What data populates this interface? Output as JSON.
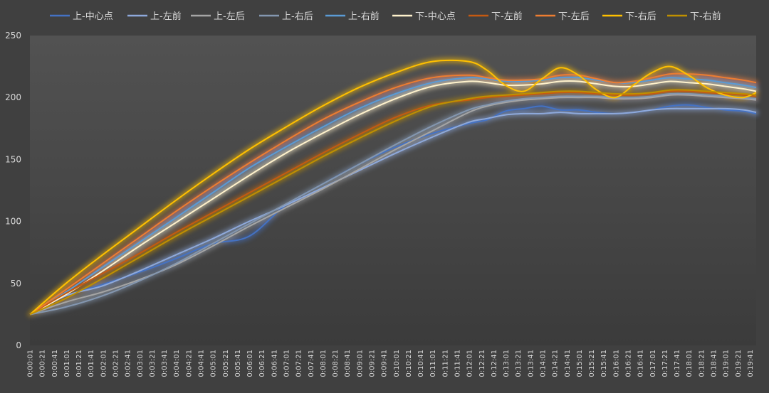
{
  "chart_data": {
    "type": "line",
    "title": "",
    "xlabel": "",
    "ylabel": "",
    "ylim": [
      0,
      250
    ],
    "yticks": [
      0,
      50,
      100,
      150,
      200,
      250
    ],
    "xlim": [
      "0:00:01",
      "0:19:51"
    ],
    "grid": false,
    "legend": "top",
    "x_tick_labels": [
      "0:00:01",
      "0:00:21",
      "0:00:41",
      "0:01:01",
      "0:01:21",
      "0:01:41",
      "0:02:01",
      "0:02:21",
      "0:02:41",
      "0:03:01",
      "0:03:21",
      "0:03:41",
      "0:04:01",
      "0:04:21",
      "0:04:41",
      "0:05:01",
      "0:05:21",
      "0:05:41",
      "0:06:01",
      "0:06:21",
      "0:06:41",
      "0:07:01",
      "0:07:21",
      "0:07:41",
      "0:08:01",
      "0:08:21",
      "0:08:41",
      "0:09:01",
      "0:09:21",
      "0:09:41",
      "0:10:01",
      "0:10:21",
      "0:10:41",
      "0:11:01",
      "0:11:21",
      "0:11:41",
      "0:12:01",
      "0:12:21",
      "0:12:41",
      "0:13:01",
      "0:13:21",
      "0:13:41",
      "0:14:01",
      "0:14:21",
      "0:14:41",
      "0:15:01",
      "0:15:21",
      "0:15:41",
      "0:16:01",
      "0:16:21",
      "0:16:41",
      "0:17:01",
      "0:17:21",
      "0:17:41",
      "0:18:01",
      "0:18:21",
      "0:18:41",
      "0:19:01",
      "0:19:21",
      "0:19:41"
    ],
    "x_minutes": [
      0.02,
      1,
      2,
      3,
      4,
      5,
      6,
      7,
      8,
      9,
      10,
      11,
      12,
      12.5,
      13,
      13.5,
      14,
      14.5,
      15,
      15.5,
      16,
      16.5,
      17,
      17.5,
      18,
      18.5,
      19,
      19.5,
      19.85
    ],
    "series": [
      {
        "name": "上-中心点",
        "color": "#4472C4",
        "values": [
          25,
          40,
          49,
          59,
          70,
          82,
          88,
          113,
          130,
          146,
          160,
          171,
          179,
          182,
          189,
          191,
          193,
          190,
          190,
          188,
          187,
          188,
          190,
          193,
          194,
          192,
          190,
          189,
          187
        ]
      },
      {
        "name": "上-左前",
        "color": "#8EA9DB",
        "values": [
          25,
          40,
          48,
          60,
          73,
          86,
          100,
          113,
          127,
          141,
          155,
          168,
          180,
          183,
          186,
          187,
          187,
          188,
          187,
          187,
          187,
          188,
          190,
          191,
          191,
          191,
          191,
          190,
          188
        ]
      },
      {
        "name": "上-左后",
        "color": "#A5A5A5",
        "values": [
          25,
          35,
          43,
          53,
          65,
          80,
          96,
          111,
          126,
          142,
          158,
          173,
          188,
          193,
          196,
          198,
          199,
          200,
          200,
          200,
          199,
          199,
          200,
          202,
          202,
          201,
          200,
          199,
          198
        ]
      },
      {
        "name": "上-右后",
        "color": "#8497B0",
        "values": [
          25,
          31,
          40,
          52,
          66,
          82,
          98,
          114,
          130,
          146,
          162,
          177,
          190,
          194,
          197,
          199,
          200,
          201,
          201,
          201,
          200,
          200,
          201,
          203,
          203,
          202,
          201,
          200,
          199
        ]
      },
      {
        "name": "上-右前",
        "color": "#5B9BD5",
        "values": [
          25,
          43,
          63,
          83,
          103,
          123,
          143,
          160,
          176,
          191,
          203,
          212,
          216,
          215,
          213,
          213,
          214,
          216,
          216,
          214,
          212,
          212,
          214,
          216,
          215,
          214,
          212,
          210,
          208
        ]
      },
      {
        "name": "下-中心点",
        "color": "#FFF2CC",
        "values": [
          25,
          41,
          60,
          80,
          99,
          118,
          137,
          155,
          171,
          186,
          199,
          209,
          213,
          212,
          210,
          210,
          211,
          213,
          213,
          211,
          209,
          209,
          211,
          213,
          212,
          211,
          209,
          207,
          205
        ]
      },
      {
        "name": "下-左前",
        "color": "#C55A11",
        "values": [
          25,
          42,
          58,
          74,
          91,
          107,
          123,
          139,
          155,
          170,
          184,
          194,
          198,
          200,
          201,
          202,
          203,
          204,
          204,
          203,
          202,
          202,
          203,
          205,
          205,
          204,
          203,
          202,
          201
        ]
      },
      {
        "name": "下-左后",
        "color": "#ED7D31",
        "values": [
          25,
          45,
          66,
          87,
          108,
          128,
          147,
          165,
          182,
          196,
          208,
          216,
          218,
          216,
          214,
          214,
          215,
          218,
          218,
          215,
          212,
          213,
          216,
          219,
          219,
          218,
          216,
          214,
          212
        ]
      },
      {
        "name": "下-右后",
        "color": "#FFC000",
        "values": [
          25,
          50,
          73,
          95,
          117,
          138,
          158,
          176,
          193,
          208,
          220,
          229,
          229,
          222,
          210,
          205,
          215,
          224,
          218,
          206,
          200,
          210,
          220,
          225,
          218,
          208,
          202,
          200,
          204
        ]
      },
      {
        "name": "下-右前",
        "color": "#BF9000",
        "values": [
          25,
          38,
          54,
          71,
          88,
          104,
          120,
          136,
          152,
          167,
          181,
          193,
          199,
          201,
          202,
          203,
          204,
          205,
          205,
          204,
          203,
          203,
          204,
          206,
          206,
          205,
          204,
          203,
          202
        ]
      }
    ]
  }
}
